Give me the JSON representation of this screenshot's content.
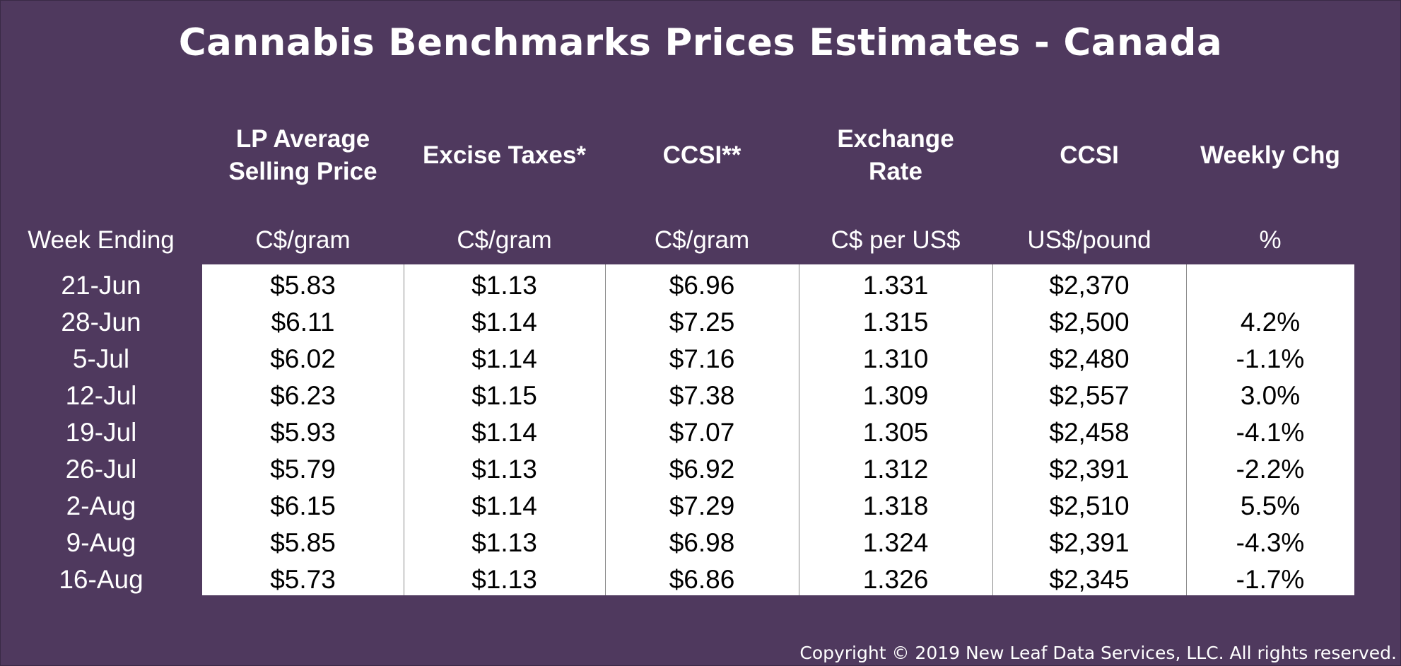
{
  "chart_data": {
    "type": "table",
    "title": "Cannabis Benchmarks Prices Estimates - Canada",
    "row_header": "Week Ending",
    "columns": [
      {
        "header_lines": [
          "LP Average",
          "Selling Price"
        ],
        "unit": "C$/gram"
      },
      {
        "header_lines": [
          "Excise Taxes*"
        ],
        "unit": "C$/gram"
      },
      {
        "header_lines": [
          "CCSI**"
        ],
        "unit": "C$/gram"
      },
      {
        "header_lines": [
          "Exchange",
          "Rate"
        ],
        "unit": "C$ per US$"
      },
      {
        "header_lines": [
          "CCSI"
        ],
        "unit": "US$/pound"
      },
      {
        "header_lines": [
          "Weekly Chg"
        ],
        "unit": "%"
      }
    ],
    "rows": [
      {
        "week": "21-Jun",
        "values": [
          "$5.83",
          "$1.13",
          "$6.96",
          "1.331",
          "$2,370",
          ""
        ]
      },
      {
        "week": "28-Jun",
        "values": [
          "$6.11",
          "$1.14",
          "$7.25",
          "1.315",
          "$2,500",
          "4.2%"
        ]
      },
      {
        "week": "5-Jul",
        "values": [
          "$6.02",
          "$1.14",
          "$7.16",
          "1.310",
          "$2,480",
          "-1.1%"
        ]
      },
      {
        "week": "12-Jul",
        "values": [
          "$6.23",
          "$1.15",
          "$7.38",
          "1.309",
          "$2,557",
          "3.0%"
        ]
      },
      {
        "week": "19-Jul",
        "values": [
          "$5.93",
          "$1.14",
          "$7.07",
          "1.305",
          "$2,458",
          "-4.1%"
        ]
      },
      {
        "week": "26-Jul",
        "values": [
          "$5.79",
          "$1.13",
          "$6.92",
          "1.312",
          "$2,391",
          "-2.2%"
        ]
      },
      {
        "week": "2-Aug",
        "values": [
          "$6.15",
          "$1.14",
          "$7.29",
          "1.318",
          "$2,510",
          "5.5%"
        ]
      },
      {
        "week": "9-Aug",
        "values": [
          "$5.85",
          "$1.13",
          "$6.98",
          "1.324",
          "$2,391",
          "-4.3%"
        ]
      },
      {
        "week": "16-Aug",
        "values": [
          "$5.73",
          "$1.13",
          "$6.86",
          "1.326",
          "$2,345",
          "-1.7%"
        ]
      }
    ]
  },
  "footer": {
    "copyright": "Copyright © 2019 New Leaf Data Services, LLC. All rights reserved."
  },
  "colors": {
    "background": "#4f395e",
    "header_text": "#ffffff",
    "table_background": "#ffffff",
    "table_text": "#000000",
    "grid_line": "#8a8a8a"
  }
}
